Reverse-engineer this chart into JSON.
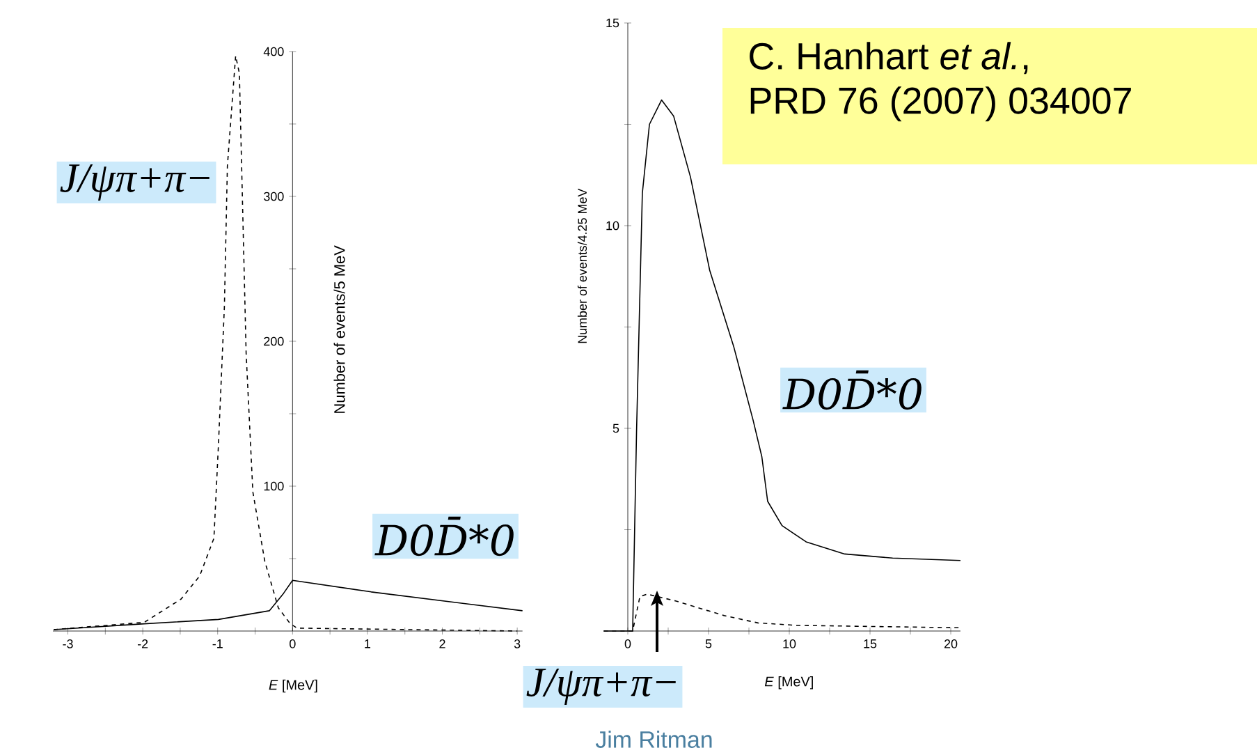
{
  "chart_data": [
    {
      "type": "line",
      "xlabel": "*E* [MeV]",
      "ylabel": "Number of events/5 MeV",
      "xlim": [
        -3.2,
        3.07
      ],
      "ylim": [
        0,
        400
      ],
      "xticks": [
        -3,
        {
          "value": -2.5,
          "label": null
        },
        -2,
        {
          "value": -1.5,
          "label": null
        },
        -1,
        {
          "value": -0.5,
          "label": null
        },
        0,
        {
          "value": 0.5,
          "label": null
        },
        1,
        {
          "value": 1.5,
          "label": null
        },
        2,
        {
          "value": 2.5,
          "label": null
        },
        3
      ],
      "yticks": [
        {
          "value": 50,
          "label": null
        },
        100,
        {
          "value": 150,
          "label": null
        },
        200,
        {
          "value": 250,
          "label": null
        },
        300,
        {
          "value": 350,
          "label": null
        },
        400
      ],
      "series": [
        {
          "name": "D0D̄*0",
          "color": "#000000",
          "line_style": "solid",
          "x": [
            -3.19,
            -1.98,
            -0.99,
            -0.31,
            -0.12,
            0,
            1.05,
            2.29,
            3.07
          ],
          "values": [
            1,
            5,
            8,
            14,
            26,
            35,
            27,
            19,
            14
          ]
        },
        {
          "name": "J/ψπ+π−",
          "color": "#000000",
          "line_style": "dashed",
          "x": [
            -3.19,
            -1.98,
            -1.49,
            -1.24,
            -1.05,
            -0.99,
            -0.91,
            -0.87,
            -0.76,
            -0.71,
            -0.68,
            -0.62,
            -0.53,
            -0.37,
            -0.19,
            -0.03,
            0.06,
            3.0
          ],
          "values": [
            1,
            6,
            22,
            38,
            64,
            128,
            224,
            321,
            397,
            385,
            321,
            192,
            96,
            48,
            16,
            5,
            2,
            0
          ]
        }
      ]
    },
    {
      "type": "line",
      "xlabel": "*E* [MeV]",
      "ylabel": "Number of events/4.25 MeV",
      "xlim": [
        -1.5,
        20.6
      ],
      "ylim": [
        0,
        15
      ],
      "xticks": [
        0,
        {
          "value": 2.5,
          "label": null
        },
        5,
        {
          "value": 7.5,
          "label": null
        },
        10,
        {
          "value": 12.5,
          "label": null
        },
        15,
        {
          "value": 17.5,
          "label": null
        },
        20
      ],
      "yticks": [
        {
          "value": 2.5,
          "label": null
        },
        5,
        {
          "value": 7.5,
          "label": null
        },
        10,
        {
          "value": 12.5,
          "label": null
        },
        15
      ],
      "series": [
        {
          "name": "D0D̄*0",
          "color": "#000000",
          "line_style": "solid",
          "x": [
            -1.49,
            0.3,
            0.54,
            0.9,
            1.34,
            2.09,
            2.84,
            3.88,
            5.07,
            6.57,
            7.76,
            8.3,
            8.66,
            9.55,
            11.04,
            13.43,
            16.4,
            20.6
          ],
          "values": [
            0,
            0,
            4.9,
            10.8,
            12.5,
            13.1,
            12.7,
            11.2,
            8.9,
            7.0,
            5.2,
            4.3,
            3.2,
            2.6,
            2.2,
            1.9,
            1.8,
            1.74
          ]
        },
        {
          "name": "J/ψπ+π−",
          "color": "#000000",
          "line_style": "dashed",
          "x": [
            -1.49,
            0.3,
            0.75,
            1.19,
            2.99,
            5.97,
            8.06,
            10.45,
            20.6
          ],
          "values": [
            0,
            0,
            0.85,
            0.91,
            0.74,
            0.38,
            0.2,
            0.14,
            0.08
          ]
        }
      ],
      "annotations": [
        "C. Hanhart *et al.*,",
        "PRD 76 (2007) 034007",
        "Jim Ritman"
      ]
    }
  ]
}
